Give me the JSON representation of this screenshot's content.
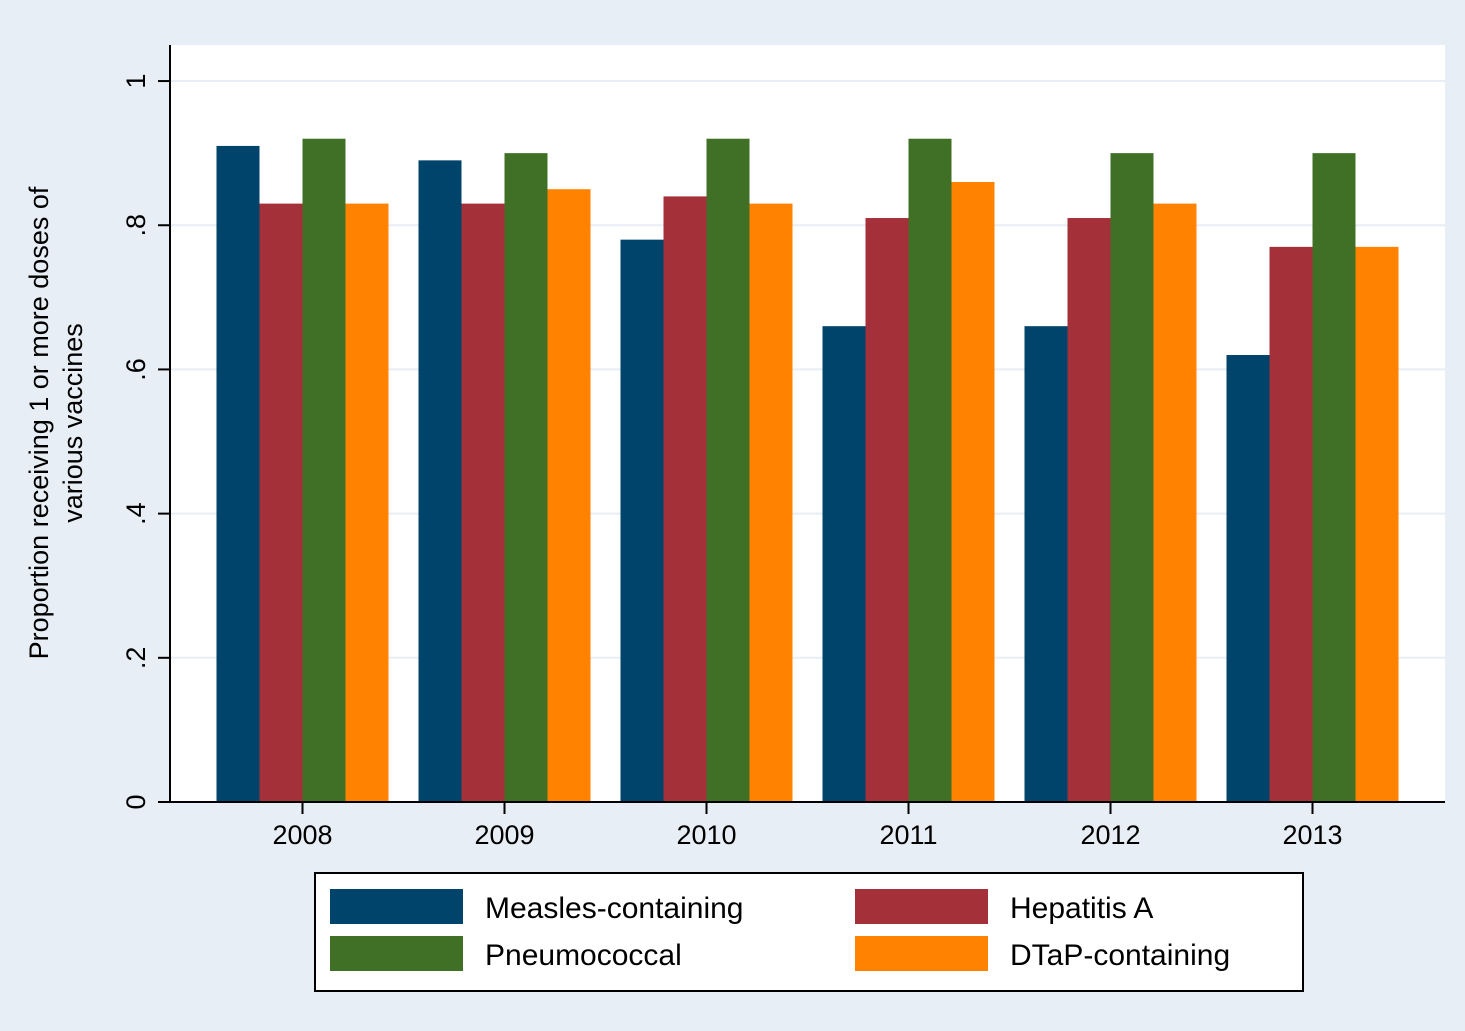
{
  "chart_data": {
    "type": "bar",
    "title": "",
    "xlabel": "",
    "ylabel_lines": [
      "Proportion receiving 1 or more doses of",
      "various vaccines"
    ],
    "categories": [
      "2008",
      "2009",
      "2010",
      "2011",
      "2012",
      "2013"
    ],
    "ylim": [
      0,
      1.05
    ],
    "yticks": [
      0,
      0.2,
      0.4,
      0.6,
      0.8,
      1
    ],
    "ytick_labels": [
      "0",
      ".2",
      ".4",
      ".6",
      ".8",
      "1"
    ],
    "grid": true,
    "legend_position": "bottom",
    "series": [
      {
        "name": "Measles-containing",
        "color": "#00436b",
        "values": [
          0.91,
          0.89,
          0.78,
          0.66,
          0.66,
          0.62
        ]
      },
      {
        "name": "Hepatitis A",
        "color": "#a4303a",
        "values": [
          0.83,
          0.83,
          0.84,
          0.81,
          0.81,
          0.77
        ]
      },
      {
        "name": "Pneumococcal",
        "color": "#3f7025",
        "values": [
          0.92,
          0.9,
          0.92,
          0.92,
          0.9,
          0.9
        ]
      },
      {
        "name": "DTaP-containing",
        "color": "#ff8200",
        "values": [
          0.83,
          0.85,
          0.83,
          0.86,
          0.83,
          0.77
        ]
      }
    ]
  },
  "colors": {
    "outer_background": "#e8eef5",
    "plot_background": "#ffffff",
    "gridline": "#e8eef5"
  }
}
